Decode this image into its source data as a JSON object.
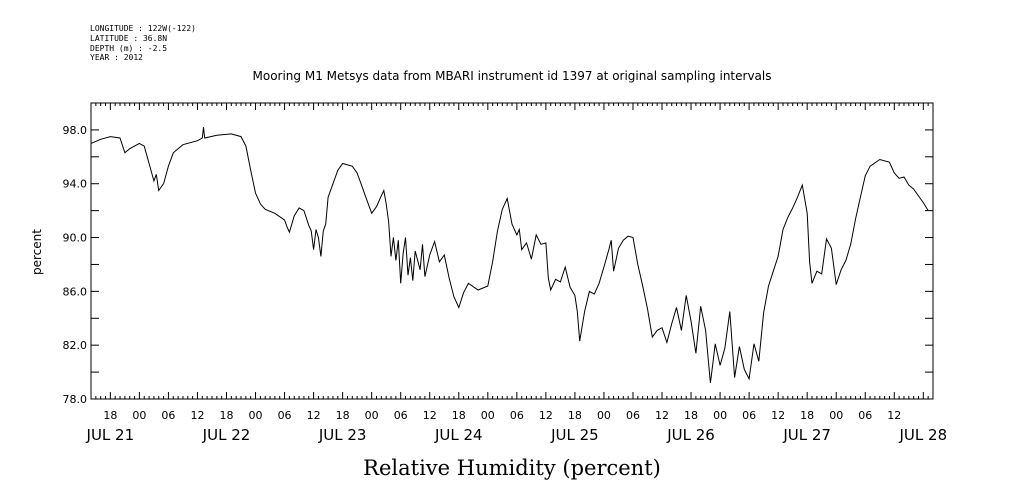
{
  "header": {
    "longitude": "LONGITUDE : 122W(-122)",
    "latitude": "LATITUDE : 36.8N",
    "depth": "DEPTH (m) : -2.5",
    "year": "YEAR : 2012"
  },
  "chart_data": {
    "type": "line",
    "title": "Mooring M1 Metsys data from MBARI instrument id 1397 at original sampling intervals",
    "xlabel": "Relative Humidity (percent)",
    "ylabel": "percent",
    "ylim": [
      78,
      100
    ],
    "yticks": [
      78.0,
      82.0,
      86.0,
      90.0,
      94.0,
      98.0
    ],
    "ytick_labels": [
      "78.0",
      "82.0",
      "86.0",
      "90.0",
      "94.0",
      "98.0"
    ],
    "xlim": [
      "2012-07-21T14:00",
      "2012-07-28T20:00"
    ],
    "xticks": [
      {
        "t": "2012-07-21T18:00",
        "label": "18"
      },
      {
        "t": "2012-07-22T00:00",
        "label": "00"
      },
      {
        "t": "2012-07-22T06:00",
        "label": "06"
      },
      {
        "t": "2012-07-22T12:00",
        "label": "12"
      },
      {
        "t": "2012-07-22T18:00",
        "label": "18"
      },
      {
        "t": "2012-07-23T00:00",
        "label": "00"
      },
      {
        "t": "2012-07-23T06:00",
        "label": "06"
      },
      {
        "t": "2012-07-23T12:00",
        "label": "12"
      },
      {
        "t": "2012-07-23T18:00",
        "label": "18"
      },
      {
        "t": "2012-07-24T00:00",
        "label": "00"
      },
      {
        "t": "2012-07-24T06:00",
        "label": "06"
      },
      {
        "t": "2012-07-24T12:00",
        "label": "12"
      },
      {
        "t": "2012-07-24T18:00",
        "label": "18"
      },
      {
        "t": "2012-07-25T00:00",
        "label": "00"
      },
      {
        "t": "2012-07-25T06:00",
        "label": "06"
      },
      {
        "t": "2012-07-25T12:00",
        "label": "12"
      },
      {
        "t": "2012-07-25T18:00",
        "label": "18"
      },
      {
        "t": "2012-07-26T00:00",
        "label": "00"
      },
      {
        "t": "2012-07-26T06:00",
        "label": "06"
      },
      {
        "t": "2012-07-26T12:00",
        "label": "12"
      },
      {
        "t": "2012-07-26T18:00",
        "label": "18"
      },
      {
        "t": "2012-07-27T00:00",
        "label": "00"
      },
      {
        "t": "2012-07-27T06:00",
        "label": "06"
      },
      {
        "t": "2012-07-27T12:00",
        "label": "12"
      },
      {
        "t": "2012-07-27T18:00",
        "label": "18"
      },
      {
        "t": "2012-07-28T00:00",
        "label": "00"
      },
      {
        "t": "2012-07-28T06:00",
        "label": "06"
      },
      {
        "t": "2012-07-28T12:00",
        "label": "12"
      }
    ],
    "day_labels": [
      {
        "t": "2012-07-21T18:00",
        "label": "JUL 21"
      },
      {
        "t": "2012-07-22T18:00",
        "label": "JUL 22"
      },
      {
        "t": "2012-07-23T18:00",
        "label": "JUL 23"
      },
      {
        "t": "2012-07-24T18:00",
        "label": "JUL 24"
      },
      {
        "t": "2012-07-25T18:00",
        "label": "JUL 25"
      },
      {
        "t": "2012-07-26T18:00",
        "label": "JUL 26"
      },
      {
        "t": "2012-07-27T18:00",
        "label": "JUL 27"
      },
      {
        "t": "2012-07-28T18:00",
        "label": "JUL 28"
      }
    ],
    "grid": false,
    "series": [
      {
        "color": "#000000",
        "points": [
          [
            "2012-07-21T14:00",
            97.0
          ],
          [
            "2012-07-21T16:00",
            97.3
          ],
          [
            "2012-07-21T18:00",
            97.5
          ],
          [
            "2012-07-21T20:00",
            97.4
          ],
          [
            "2012-07-21T21:00",
            96.3
          ],
          [
            "2012-07-21T22:00",
            96.6
          ],
          [
            "2012-07-22T00:00",
            97.0
          ],
          [
            "2012-07-22T01:00",
            96.8
          ],
          [
            "2012-07-22T02:00",
            95.5
          ],
          [
            "2012-07-22T03:00",
            94.2
          ],
          [
            "2012-07-22T03:30",
            94.7
          ],
          [
            "2012-07-22T04:00",
            93.5
          ],
          [
            "2012-07-22T05:00",
            94.0
          ],
          [
            "2012-07-22T06:00",
            95.3
          ],
          [
            "2012-07-22T07:00",
            96.3
          ],
          [
            "2012-07-22T09:00",
            96.9
          ],
          [
            "2012-07-22T12:00",
            97.2
          ],
          [
            "2012-07-22T13:00",
            97.4
          ],
          [
            "2012-07-22T13:15",
            98.2
          ],
          [
            "2012-07-22T13:30",
            97.4
          ],
          [
            "2012-07-22T16:00",
            97.6
          ],
          [
            "2012-07-22T19:00",
            97.7
          ],
          [
            "2012-07-22T21:00",
            97.5
          ],
          [
            "2012-07-22T22:00",
            96.8
          ],
          [
            "2012-07-22T23:00",
            95.0
          ],
          [
            "2012-07-23T00:00",
            93.3
          ],
          [
            "2012-07-23T01:00",
            92.5
          ],
          [
            "2012-07-23T02:00",
            92.1
          ],
          [
            "2012-07-23T04:00",
            91.8
          ],
          [
            "2012-07-23T06:00",
            91.3
          ],
          [
            "2012-07-23T06:30",
            90.8
          ],
          [
            "2012-07-23T07:00",
            90.4
          ],
          [
            "2012-07-23T07:30",
            91.0
          ],
          [
            "2012-07-23T08:00",
            91.6
          ],
          [
            "2012-07-23T09:00",
            92.2
          ],
          [
            "2012-07-23T10:00",
            92.0
          ],
          [
            "2012-07-23T11:00",
            90.9
          ],
          [
            "2012-07-23T11:30",
            90.5
          ],
          [
            "2012-07-23T12:00",
            89.1
          ],
          [
            "2012-07-23T12:30",
            90.6
          ],
          [
            "2012-07-23T13:00",
            90.0
          ],
          [
            "2012-07-23T13:30",
            88.6
          ],
          [
            "2012-07-23T14:00",
            90.5
          ],
          [
            "2012-07-23T14:30",
            91.0
          ],
          [
            "2012-07-23T15:00",
            93.0
          ],
          [
            "2012-07-23T16:00",
            94.0
          ],
          [
            "2012-07-23T17:00",
            95.0
          ],
          [
            "2012-07-23T18:00",
            95.5
          ],
          [
            "2012-07-23T20:00",
            95.3
          ],
          [
            "2012-07-23T21:00",
            94.8
          ],
          [
            "2012-07-23T22:00",
            93.8
          ],
          [
            "2012-07-23T23:00",
            92.8
          ],
          [
            "2012-07-24T00:00",
            91.8
          ],
          [
            "2012-07-24T01:00",
            92.3
          ],
          [
            "2012-07-24T02:00",
            93.1
          ],
          [
            "2012-07-24T02:30",
            93.5
          ],
          [
            "2012-07-24T03:00",
            92.5
          ],
          [
            "2012-07-24T03:30",
            91.2
          ],
          [
            "2012-07-24T04:00",
            88.6
          ],
          [
            "2012-07-24T04:30",
            90.0
          ],
          [
            "2012-07-24T05:00",
            88.3
          ],
          [
            "2012-07-24T05:30",
            89.8
          ],
          [
            "2012-07-24T06:00",
            86.6
          ],
          [
            "2012-07-24T06:30",
            88.8
          ],
          [
            "2012-07-24T07:00",
            90.0
          ],
          [
            "2012-07-24T07:30",
            87.2
          ],
          [
            "2012-07-24T08:00",
            88.5
          ],
          [
            "2012-07-24T08:30",
            86.8
          ],
          [
            "2012-07-24T09:00",
            89.0
          ],
          [
            "2012-07-24T10:00",
            87.6
          ],
          [
            "2012-07-24T10:30",
            89.5
          ],
          [
            "2012-07-24T11:00",
            87.1
          ],
          [
            "2012-07-24T12:00",
            88.7
          ],
          [
            "2012-07-24T13:00",
            89.7
          ],
          [
            "2012-07-24T14:00",
            88.2
          ],
          [
            "2012-07-24T15:00",
            88.7
          ],
          [
            "2012-07-24T16:00",
            87.0
          ],
          [
            "2012-07-24T17:00",
            85.6
          ],
          [
            "2012-07-24T18:00",
            84.8
          ],
          [
            "2012-07-24T19:00",
            85.9
          ],
          [
            "2012-07-24T20:00",
            86.6
          ],
          [
            "2012-07-24T22:00",
            86.1
          ],
          [
            "2012-07-25T00:00",
            86.4
          ],
          [
            "2012-07-25T01:00",
            88.2
          ],
          [
            "2012-07-25T02:00",
            90.5
          ],
          [
            "2012-07-25T03:00",
            92.1
          ],
          [
            "2012-07-25T04:00",
            92.9
          ],
          [
            "2012-07-25T05:00",
            91.0
          ],
          [
            "2012-07-25T06:00",
            90.2
          ],
          [
            "2012-07-25T06:30",
            90.6
          ],
          [
            "2012-07-25T07:00",
            89.1
          ],
          [
            "2012-07-25T08:00",
            89.6
          ],
          [
            "2012-07-25T09:00",
            88.4
          ],
          [
            "2012-07-25T10:00",
            90.2
          ],
          [
            "2012-07-25T11:00",
            89.5
          ],
          [
            "2012-07-25T12:00",
            89.6
          ],
          [
            "2012-07-25T12:30",
            87.0
          ],
          [
            "2012-07-25T13:00",
            86.1
          ],
          [
            "2012-07-25T14:00",
            86.9
          ],
          [
            "2012-07-25T15:00",
            86.7
          ],
          [
            "2012-07-25T16:00",
            87.8
          ],
          [
            "2012-07-25T17:00",
            86.3
          ],
          [
            "2012-07-25T18:00",
            85.7
          ],
          [
            "2012-07-25T18:30",
            84.5
          ],
          [
            "2012-07-25T19:00",
            82.3
          ],
          [
            "2012-07-25T20:00",
            84.5
          ],
          [
            "2012-07-25T21:00",
            86.0
          ],
          [
            "2012-07-25T22:00",
            85.8
          ],
          [
            "2012-07-25T23:00",
            86.6
          ],
          [
            "2012-07-26T00:00",
            87.8
          ],
          [
            "2012-07-26T01:00",
            89.1
          ],
          [
            "2012-07-26T01:30",
            89.8
          ],
          [
            "2012-07-26T02:00",
            87.5
          ],
          [
            "2012-07-26T03:00",
            89.2
          ],
          [
            "2012-07-26T04:00",
            89.8
          ],
          [
            "2012-07-26T05:00",
            90.1
          ],
          [
            "2012-07-26T06:00",
            90.0
          ],
          [
            "2012-07-26T07:00",
            88.0
          ],
          [
            "2012-07-26T08:00",
            86.4
          ],
          [
            "2012-07-26T09:00",
            84.7
          ],
          [
            "2012-07-26T10:00",
            82.6
          ],
          [
            "2012-07-26T11:00",
            83.1
          ],
          [
            "2012-07-26T12:00",
            83.3
          ],
          [
            "2012-07-26T13:00",
            82.2
          ],
          [
            "2012-07-26T14:00",
            83.6
          ],
          [
            "2012-07-26T15:00",
            84.8
          ],
          [
            "2012-07-26T16:00",
            83.1
          ],
          [
            "2012-07-26T17:00",
            85.7
          ],
          [
            "2012-07-26T18:00",
            83.8
          ],
          [
            "2012-07-26T19:00",
            81.4
          ],
          [
            "2012-07-26T20:00",
            84.9
          ],
          [
            "2012-07-26T21:00",
            83.1
          ],
          [
            "2012-07-26T22:00",
            79.2
          ],
          [
            "2012-07-26T22:30",
            80.6
          ],
          [
            "2012-07-26T23:00",
            82.1
          ],
          [
            "2012-07-27T00:00",
            80.5
          ],
          [
            "2012-07-27T01:00",
            81.8
          ],
          [
            "2012-07-27T02:00",
            84.5
          ],
          [
            "2012-07-27T03:00",
            79.6
          ],
          [
            "2012-07-27T04:00",
            81.9
          ],
          [
            "2012-07-27T05:00",
            80.2
          ],
          [
            "2012-07-27T06:00",
            79.5
          ],
          [
            "2012-07-27T07:00",
            82.1
          ],
          [
            "2012-07-27T08:00",
            80.8
          ],
          [
            "2012-07-27T09:00",
            84.4
          ],
          [
            "2012-07-27T10:00",
            86.4
          ],
          [
            "2012-07-27T11:00",
            87.5
          ],
          [
            "2012-07-27T12:00",
            88.6
          ],
          [
            "2012-07-27T13:00",
            90.6
          ],
          [
            "2012-07-27T14:00",
            91.5
          ],
          [
            "2012-07-27T15:00",
            92.2
          ],
          [
            "2012-07-27T16:00",
            93.0
          ],
          [
            "2012-07-27T17:00",
            93.9
          ],
          [
            "2012-07-27T18:00",
            91.8
          ],
          [
            "2012-07-27T18:30",
            88.2
          ],
          [
            "2012-07-27T19:00",
            86.6
          ],
          [
            "2012-07-27T20:00",
            87.5
          ],
          [
            "2012-07-27T21:00",
            87.3
          ],
          [
            "2012-07-27T22:00",
            89.9
          ],
          [
            "2012-07-27T23:00",
            89.2
          ],
          [
            "2012-07-28T00:00",
            86.5
          ],
          [
            "2012-07-28T01:00",
            87.6
          ],
          [
            "2012-07-28T02:00",
            88.3
          ],
          [
            "2012-07-28T03:00",
            89.5
          ],
          [
            "2012-07-28T04:00",
            91.4
          ],
          [
            "2012-07-28T05:00",
            93.0
          ],
          [
            "2012-07-28T06:00",
            94.6
          ],
          [
            "2012-07-28T07:00",
            95.3
          ],
          [
            "2012-07-28T09:00",
            95.8
          ],
          [
            "2012-07-28T11:00",
            95.6
          ],
          [
            "2012-07-28T12:00",
            94.8
          ],
          [
            "2012-07-28T13:00",
            94.4
          ],
          [
            "2012-07-28T14:00",
            94.5
          ],
          [
            "2012-07-28T15:00",
            93.9
          ],
          [
            "2012-07-28T16:00",
            93.6
          ],
          [
            "2012-07-28T18:00",
            92.6
          ],
          [
            "2012-07-28T19:00",
            92.0
          ]
        ]
      }
    ]
  }
}
